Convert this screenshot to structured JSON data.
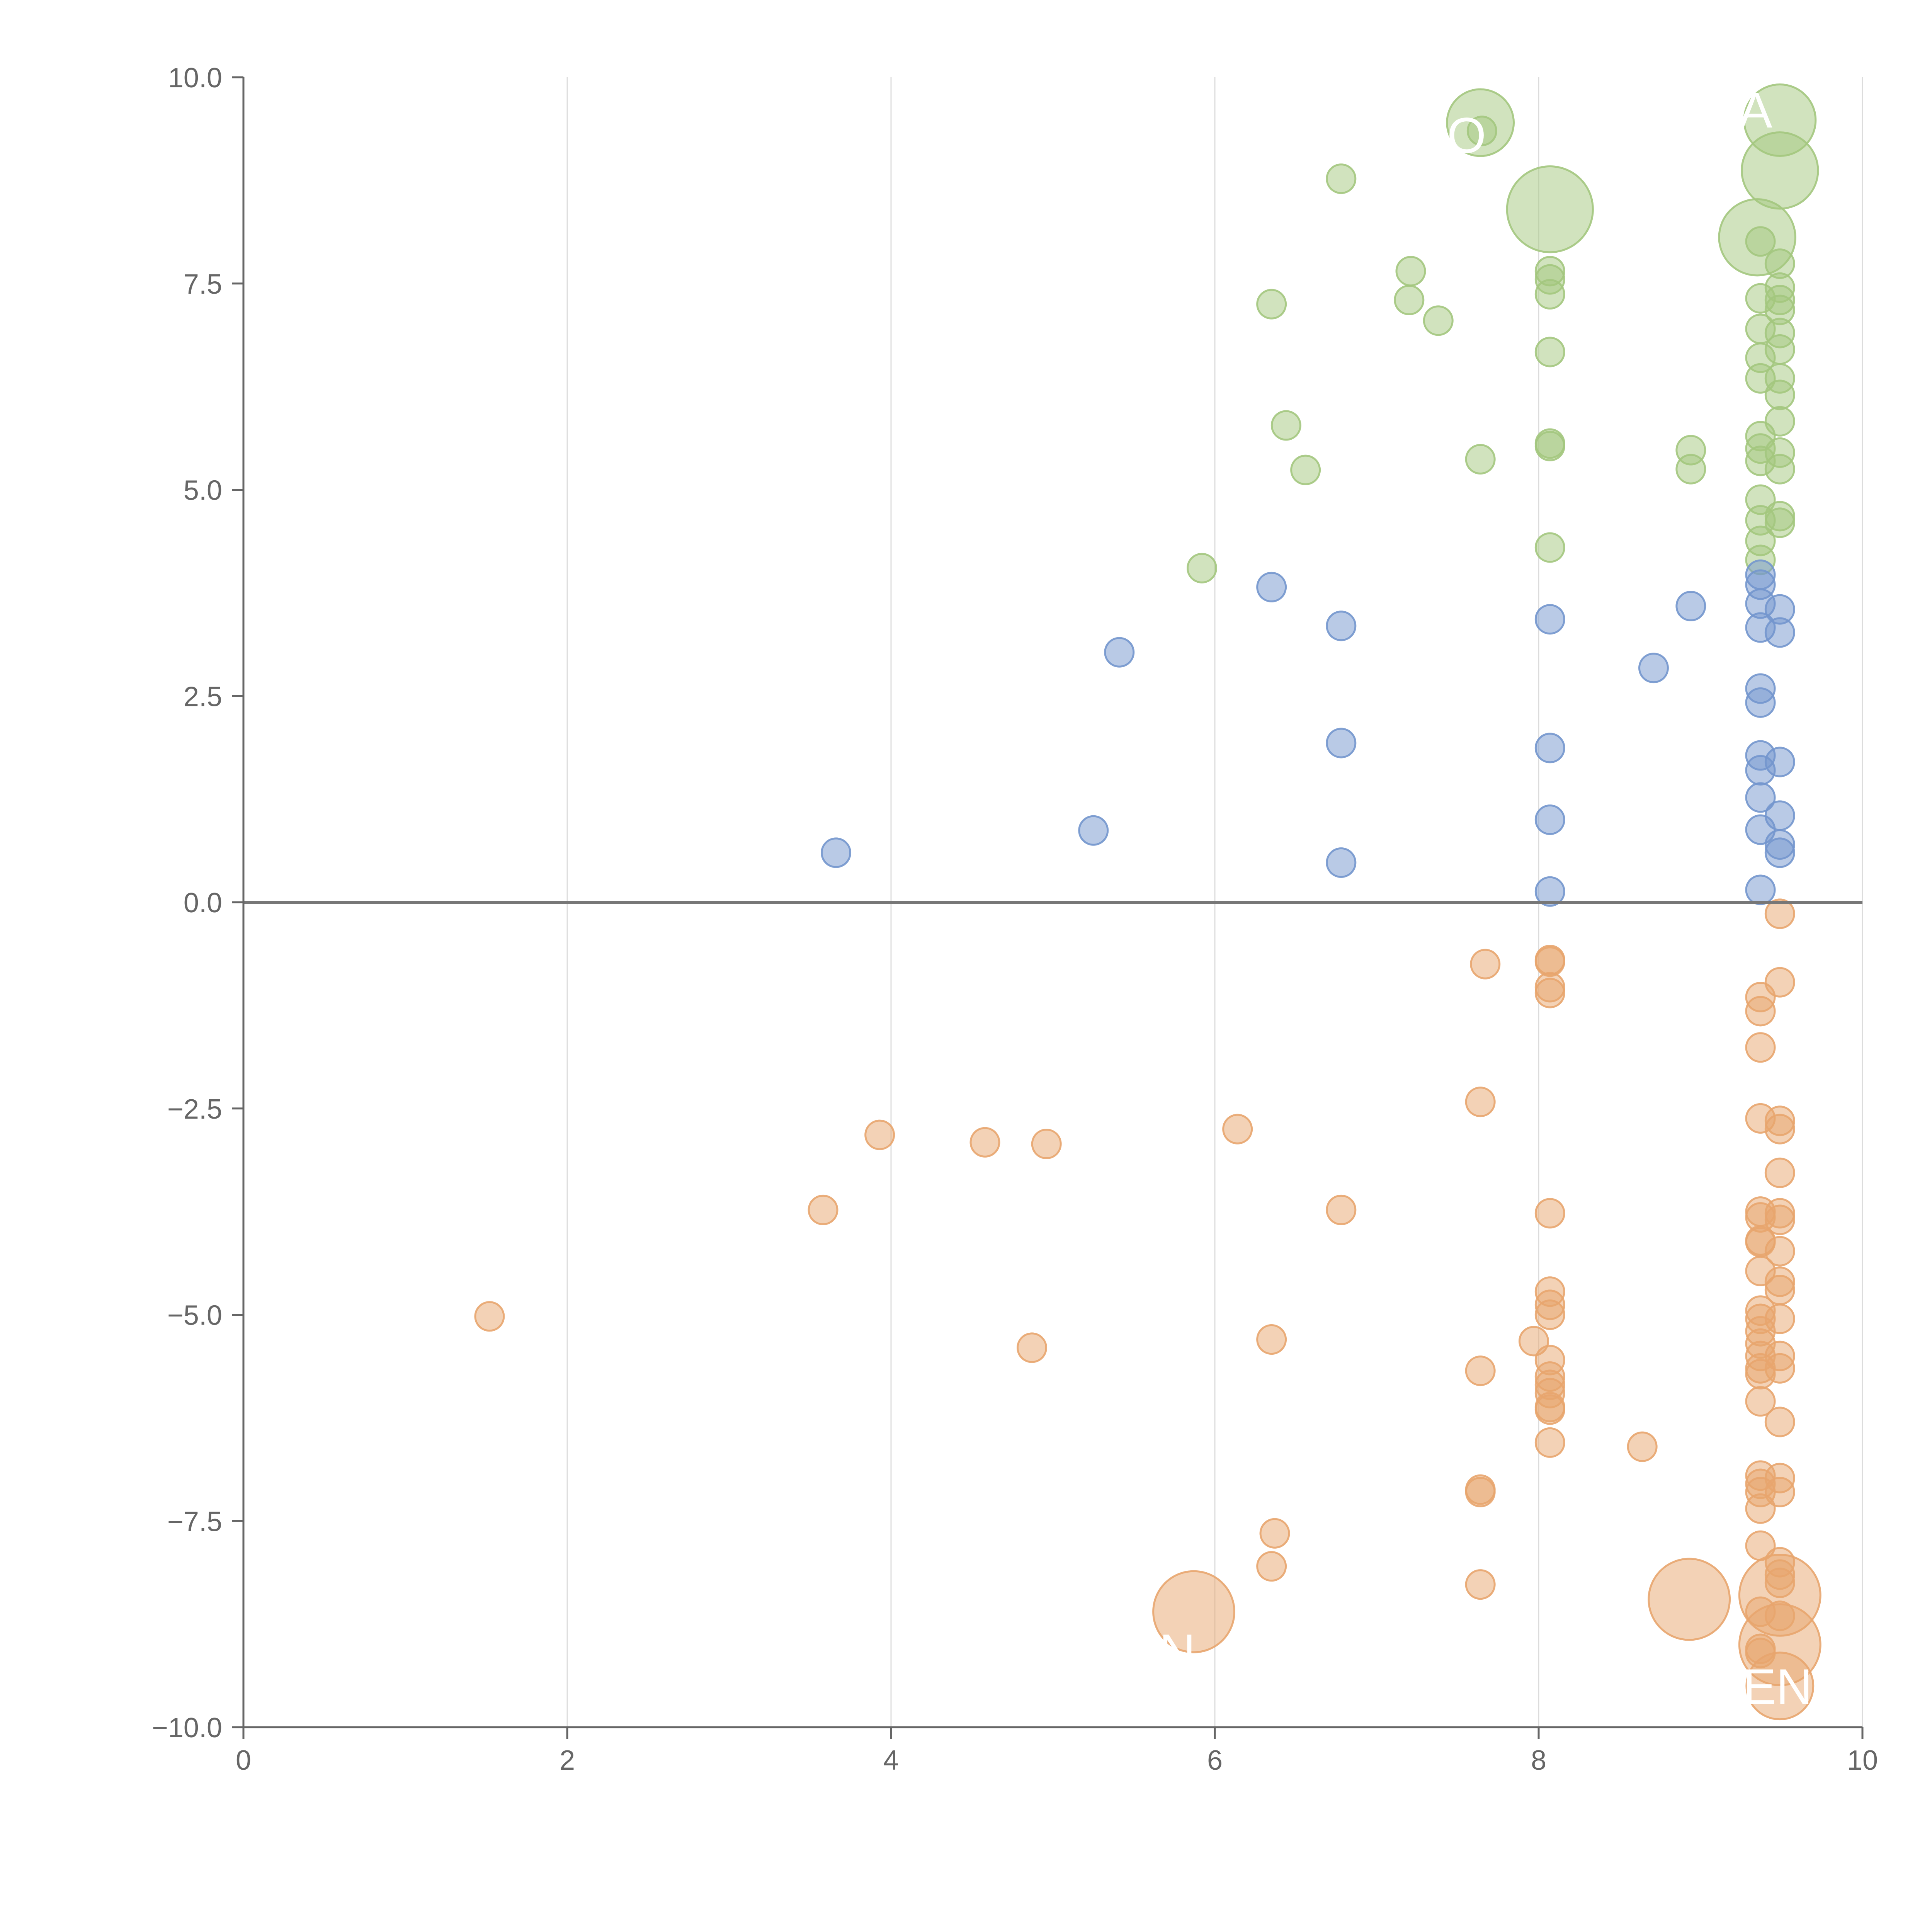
{
  "chart_data": {
    "type": "scatter",
    "title": "",
    "xlabel": "",
    "ylabel": "",
    "xlim": [
      0,
      10
    ],
    "ylim": [
      -10,
      10
    ],
    "x_ticks": [
      "0",
      "2",
      "4",
      "6",
      "8",
      "10"
    ],
    "y_ticks": [
      "10.0",
      "7.5",
      "5.0",
      "2.5",
      "0.0",
      "−2.5",
      "−5.0",
      "−7.5",
      "−10.0"
    ],
    "grid": "vertical",
    "zero_line": true,
    "colors": {
      "green": "#a3c77e",
      "blue": "#7396cd",
      "orange": "#e8a56e",
      "axis": "#666666",
      "grid": "#dcdcdc"
    },
    "labels": [
      "A",
      "O",
      "N",
      "EN"
    ],
    "series": [
      {
        "color": "green",
        "points": [
          [
            7.64,
            9.45,
            1.4
          ],
          [
            7.65,
            9.35,
            0.6
          ],
          [
            6.78,
            8.77,
            0.6
          ],
          [
            9.49,
            9.48,
            1.5
          ],
          [
            9.49,
            8.87,
            1.6
          ],
          [
            8.07,
            8.4,
            1.8
          ],
          [
            9.35,
            8.06,
            1.6
          ],
          [
            9.37,
            8.01,
            0.6
          ],
          [
            9.49,
            7.74,
            0.6
          ],
          [
            7.21,
            7.65,
            0.6
          ],
          [
            8.07,
            7.65,
            0.6
          ],
          [
            8.07,
            7.55,
            0.6
          ],
          [
            8.07,
            7.37,
            0.6
          ],
          [
            9.37,
            7.32,
            0.6
          ],
          [
            9.49,
            7.45,
            0.6
          ],
          [
            9.49,
            7.3,
            0.6
          ],
          [
            9.49,
            7.18,
            0.6
          ],
          [
            7.2,
            7.3,
            0.6
          ],
          [
            6.35,
            7.25,
            0.6
          ],
          [
            7.38,
            7.05,
            0.6
          ],
          [
            9.37,
            6.95,
            0.6
          ],
          [
            9.49,
            6.9,
            0.6
          ],
          [
            9.49,
            6.7,
            0.6
          ],
          [
            8.07,
            6.67,
            0.6
          ],
          [
            9.37,
            6.6,
            0.6
          ],
          [
            9.37,
            6.35,
            0.6
          ],
          [
            9.49,
            6.35,
            0.6
          ],
          [
            9.49,
            6.15,
            0.6
          ],
          [
            6.44,
            5.78,
            0.6
          ],
          [
            9.49,
            5.83,
            0.6
          ],
          [
            9.37,
            5.65,
            0.6
          ],
          [
            8.07,
            5.56,
            0.6
          ],
          [
            8.07,
            5.53,
            0.6
          ],
          [
            8.94,
            5.48,
            0.6
          ],
          [
            9.37,
            5.5,
            0.6
          ],
          [
            9.37,
            5.35,
            0.6
          ],
          [
            9.49,
            5.45,
            0.6
          ],
          [
            7.64,
            5.37,
            0.6
          ],
          [
            6.56,
            5.24,
            0.6
          ],
          [
            8.94,
            5.25,
            0.6
          ],
          [
            9.49,
            5.25,
            0.6
          ],
          [
            9.37,
            4.88,
            0.6
          ],
          [
            9.49,
            4.68,
            0.6
          ],
          [
            9.49,
            4.6,
            0.6
          ],
          [
            9.37,
            4.63,
            0.6
          ],
          [
            9.37,
            4.38,
            0.6
          ],
          [
            8.07,
            4.3,
            0.6
          ],
          [
            9.37,
            4.15,
            0.6
          ],
          [
            5.92,
            4.05,
            0.6
          ]
        ]
      },
      {
        "color": "blue",
        "points": [
          [
            6.35,
            3.82,
            0.6
          ],
          [
            9.37,
            3.97,
            0.6
          ],
          [
            9.37,
            3.85,
            0.6
          ],
          [
            9.37,
            3.62,
            0.6
          ],
          [
            8.94,
            3.59,
            0.6
          ],
          [
            9.49,
            3.55,
            0.6
          ],
          [
            8.07,
            3.43,
            0.6
          ],
          [
            6.78,
            3.35,
            0.6
          ],
          [
            9.37,
            3.33,
            0.6
          ],
          [
            9.49,
            3.27,
            0.6
          ],
          [
            5.41,
            3.03,
            0.6
          ],
          [
            8.71,
            2.84,
            0.6
          ],
          [
            9.37,
            2.59,
            0.6
          ],
          [
            9.37,
            2.42,
            0.6
          ],
          [
            6.78,
            1.93,
            0.6
          ],
          [
            8.07,
            1.87,
            0.6
          ],
          [
            9.37,
            1.78,
            0.6
          ],
          [
            9.49,
            1.7,
            0.6
          ],
          [
            9.37,
            1.6,
            0.6
          ],
          [
            9.37,
            1.27,
            0.6
          ],
          [
            9.49,
            1.05,
            0.6
          ],
          [
            8.07,
            1.0,
            0.6
          ],
          [
            9.37,
            0.88,
            0.6
          ],
          [
            5.25,
            0.87,
            0.6
          ],
          [
            9.49,
            0.7,
            0.6
          ],
          [
            9.49,
            0.6,
            0.6
          ],
          [
            3.66,
            0.6,
            0.6
          ],
          [
            6.78,
            0.48,
            0.6
          ],
          [
            8.07,
            0.13,
            0.6
          ],
          [
            9.37,
            0.15,
            0.6
          ]
        ]
      },
      {
        "color": "orange",
        "points": [
          [
            9.49,
            -0.14,
            0.6
          ],
          [
            8.07,
            -0.7,
            0.6
          ],
          [
            8.07,
            -0.72,
            0.6
          ],
          [
            7.67,
            -0.75,
            0.6
          ],
          [
            9.49,
            -0.97,
            0.6
          ],
          [
            8.07,
            -1.03,
            0.6
          ],
          [
            8.07,
            -1.1,
            0.6
          ],
          [
            9.37,
            -1.15,
            0.6
          ],
          [
            9.37,
            -1.32,
            0.6
          ],
          [
            9.37,
            -1.76,
            0.6
          ],
          [
            7.64,
            -2.42,
            0.6
          ],
          [
            9.37,
            -2.62,
            0.6
          ],
          [
            9.49,
            -2.65,
            0.6
          ],
          [
            9.49,
            -2.75,
            0.6
          ],
          [
            6.14,
            -2.75,
            0.6
          ],
          [
            3.93,
            -2.82,
            0.6
          ],
          [
            4.58,
            -2.91,
            0.6
          ],
          [
            4.96,
            -2.93,
            0.6
          ],
          [
            9.49,
            -3.28,
            0.6
          ],
          [
            9.37,
            -3.75,
            0.6
          ],
          [
            9.49,
            -3.77,
            0.6
          ],
          [
            9.37,
            -3.82,
            0.6
          ],
          [
            9.49,
            -3.85,
            0.6
          ],
          [
            8.07,
            -3.77,
            0.6
          ],
          [
            6.78,
            -3.73,
            0.6
          ],
          [
            3.58,
            -3.73,
            0.6
          ],
          [
            9.37,
            -4.1,
            0.6
          ],
          [
            9.37,
            -4.12,
            0.6
          ],
          [
            9.49,
            -4.23,
            0.6
          ],
          [
            9.37,
            -4.47,
            0.6
          ],
          [
            9.49,
            -4.6,
            0.6
          ],
          [
            9.49,
            -4.7,
            0.6
          ],
          [
            8.07,
            -4.72,
            0.6
          ],
          [
            8.07,
            -4.88,
            0.6
          ],
          [
            8.07,
            -5.0,
            0.6
          ],
          [
            9.37,
            -4.95,
            0.6
          ],
          [
            9.37,
            -5.05,
            0.6
          ],
          [
            9.49,
            -5.05,
            0.6
          ],
          [
            9.37,
            -5.2,
            0.6
          ],
          [
            9.37,
            -5.35,
            0.6
          ],
          [
            9.37,
            -5.5,
            0.6
          ],
          [
            9.49,
            -5.5,
            0.6
          ],
          [
            9.37,
            -5.65,
            0.6
          ],
          [
            9.49,
            -5.65,
            0.6
          ],
          [
            9.37,
            -5.72,
            0.6
          ],
          [
            1.52,
            -5.02,
            0.6
          ],
          [
            6.35,
            -5.3,
            0.6
          ],
          [
            7.97,
            -5.32,
            0.6
          ],
          [
            8.07,
            -5.55,
            0.6
          ],
          [
            4.87,
            -5.4,
            0.6
          ],
          [
            7.64,
            -5.68,
            0.6
          ],
          [
            8.07,
            -5.75,
            0.6
          ],
          [
            8.07,
            -5.85,
            0.6
          ],
          [
            8.07,
            -5.95,
            0.6
          ],
          [
            8.07,
            -6.12,
            0.6
          ],
          [
            8.07,
            -6.15,
            0.6
          ],
          [
            9.37,
            -6.05,
            0.6
          ],
          [
            9.49,
            -6.3,
            0.6
          ],
          [
            8.07,
            -6.55,
            0.6
          ],
          [
            8.64,
            -6.6,
            0.6
          ],
          [
            9.37,
            -6.95,
            0.6
          ],
          [
            9.49,
            -6.98,
            0.6
          ],
          [
            9.37,
            -7.05,
            0.6
          ],
          [
            9.37,
            -7.15,
            0.6
          ],
          [
            9.49,
            -7.15,
            0.6
          ],
          [
            7.64,
            -7.12,
            0.6
          ],
          [
            7.64,
            -7.15,
            0.6
          ],
          [
            9.37,
            -7.35,
            0.6
          ],
          [
            6.37,
            -7.65,
            0.6
          ],
          [
            9.37,
            -7.8,
            0.6
          ],
          [
            9.49,
            -8.0,
            0.6
          ],
          [
            6.35,
            -8.05,
            0.6
          ],
          [
            9.49,
            -8.15,
            0.6
          ],
          [
            9.49,
            -8.25,
            0.6
          ],
          [
            7.64,
            -8.27,
            0.6
          ],
          [
            9.49,
            -8.4,
            1.7
          ],
          [
            8.93,
            -8.45,
            1.7
          ],
          [
            9.37,
            -8.6,
            0.6
          ],
          [
            9.49,
            -8.65,
            0.6
          ],
          [
            5.87,
            -8.6,
            1.7
          ],
          [
            9.37,
            -9.05,
            0.6
          ],
          [
            9.37,
            -9.1,
            0.6
          ],
          [
            9.49,
            -9.0,
            1.7
          ],
          [
            9.49,
            -9.5,
            1.4
          ]
        ]
      }
    ]
  }
}
